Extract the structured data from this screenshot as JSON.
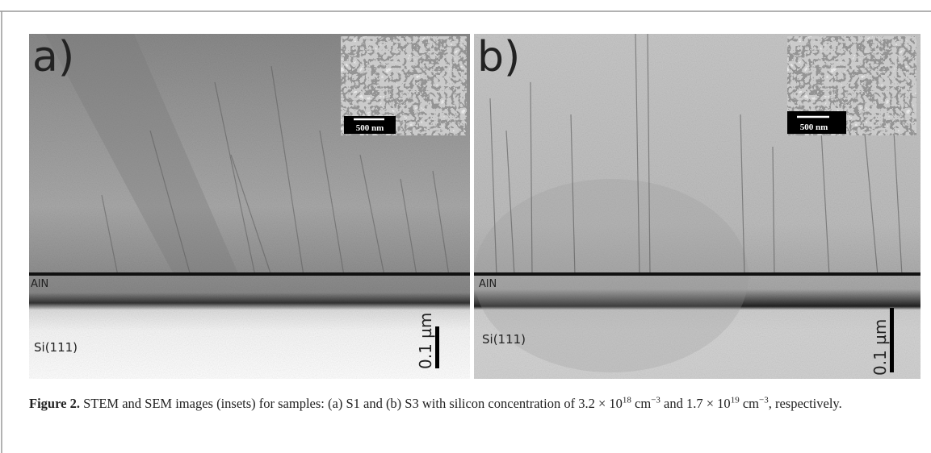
{
  "figure": {
    "panels": [
      {
        "label": "a)",
        "inset_scale": "500 nm",
        "layer_top": "AlN",
        "substrate": "Si(111)",
        "scale_bar": "0.1 µm"
      },
      {
        "label": "b)",
        "inset_scale": "500 nm",
        "layer_top": "AlN",
        "substrate": "Si(111)",
        "scale_bar": "0.1 µm"
      }
    ],
    "caption": {
      "label": "Figure 2.",
      "runs": [
        "STEM and SEM images (insets) for samples: (a) S1 and (b) S3 with silicon concentration of 3.2 × 10",
        "18",
        " cm",
        "−3",
        " and 1.7 × 10",
        "19",
        "cm",
        "−3",
        ", respectively."
      ]
    }
  }
}
